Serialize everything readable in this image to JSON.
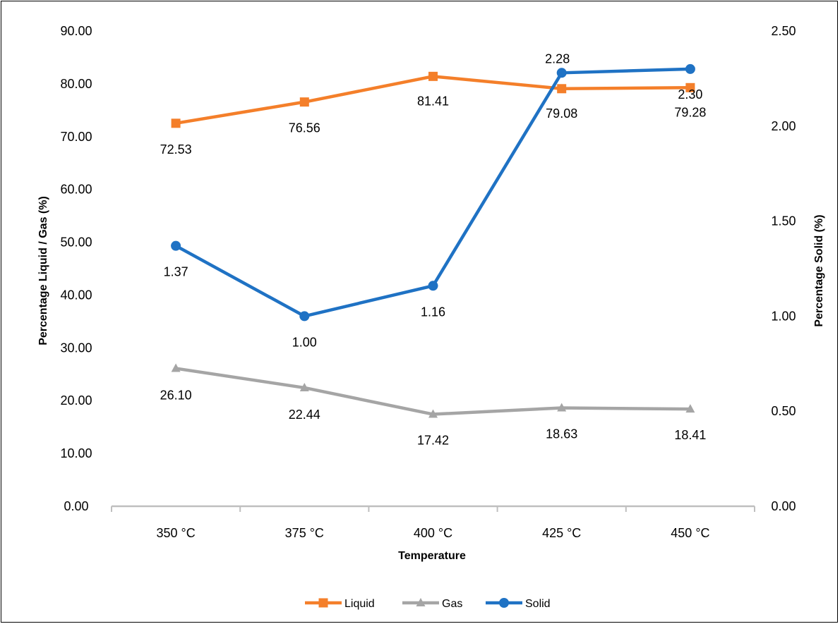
{
  "chart_data": {
    "type": "line",
    "categories": [
      "350 °C",
      "375 °C",
      "400 °C",
      "425 °C",
      "450 °C"
    ],
    "xlabel": "Temperature",
    "ylabel_left": "Percentage Liquid / Gas (%)",
    "ylabel_right": "Percentage Solid (%)",
    "ylim_left": [
      0,
      90
    ],
    "ylim_right": [
      0,
      2.5
    ],
    "yticks_left": [
      "0.00",
      "10.00",
      "20.00",
      "30.00",
      "40.00",
      "50.00",
      "60.00",
      "70.00",
      "80.00",
      "90.00"
    ],
    "yticks_right": [
      "0.00",
      "0.50",
      "1.00",
      "1.50",
      "2.00",
      "2.50"
    ],
    "grid": false,
    "legend_position": "bottom",
    "series": [
      {
        "name": "Liquid",
        "axis": "left",
        "color": "#F47F2A",
        "marker": "square",
        "values": [
          72.53,
          76.56,
          81.41,
          79.08,
          79.28
        ],
        "labels": [
          "72.53",
          "76.56",
          "81.41",
          "79.08",
          "79.28"
        ]
      },
      {
        "name": "Gas",
        "axis": "left",
        "color": "#A5A5A5",
        "marker": "triangle",
        "values": [
          26.1,
          22.44,
          17.42,
          18.63,
          18.41
        ],
        "labels": [
          "26.10",
          "22.44",
          "17.42",
          "18.63",
          "18.41"
        ]
      },
      {
        "name": "Solid",
        "axis": "right",
        "color": "#1F72C4",
        "marker": "circle",
        "values": [
          1.37,
          1.0,
          1.16,
          2.28,
          2.3
        ],
        "labels": [
          "1.37",
          "1.00",
          "1.16",
          "2.28",
          "2.30"
        ]
      }
    ]
  }
}
